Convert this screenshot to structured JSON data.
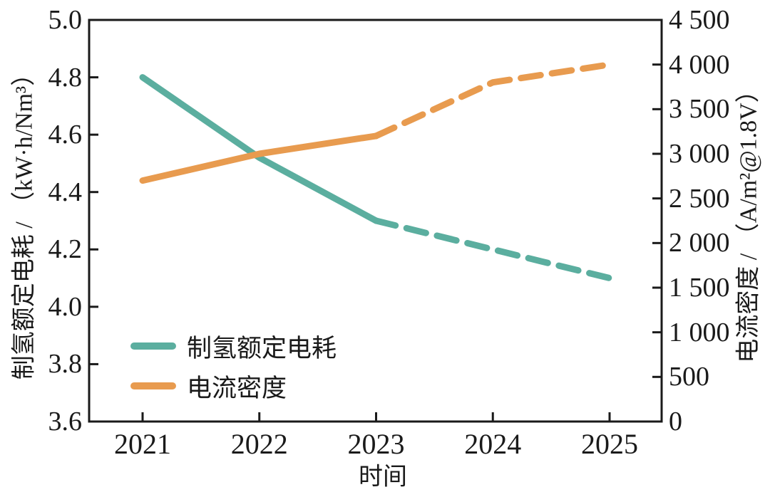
{
  "chart_data": {
    "type": "line",
    "title": "",
    "xlabel": "时间",
    "ylabel_left": "制氢额定电耗 / （kW·h/Nm³）",
    "ylabel_right": "电流密度 / （A/m²@1.8V）",
    "x_tick_labels": [
      "2021",
      "2022",
      "2023",
      "2024",
      "2025"
    ],
    "ylim_left": [
      3.6,
      5.0
    ],
    "y_ticks_left": [
      "5.0",
      "4.8",
      "4.6",
      "4.4",
      "4.2",
      "4.0",
      "3.8",
      "3.6"
    ],
    "ylim_right": [
      0,
      4500
    ],
    "y_ticks_right": [
      "4 500",
      "4 000",
      "3 500",
      "3 000",
      "2 500",
      "2 000",
      "1 500",
      "1 000",
      "500",
      "0"
    ],
    "grid": false,
    "legend_position": "inside-lower-left",
    "axis_color": "#1a1a1a",
    "series": [
      {
        "id": "power-consumption",
        "name": "制氢额定电耗",
        "axis": "left",
        "color": "#5BAE9F",
        "x": [
          2021,
          2022,
          2023,
          2024,
          2025
        ],
        "y": [
          4.8,
          4.52,
          4.3,
          4.2,
          4.1
        ],
        "solid_until_x": 2023
      },
      {
        "id": "current-density",
        "name": "电流密度",
        "axis": "right",
        "color": "#E89B4F",
        "x": [
          2021,
          2022,
          2023,
          2024,
          2025
        ],
        "y": [
          2700,
          3000,
          3200,
          3800,
          4000
        ],
        "solid_until_x": 2023
      }
    ]
  },
  "legend": {
    "items": [
      {
        "label": "制氢额定电耗",
        "color": "#5BAE9F"
      },
      {
        "label": "电流密度",
        "color": "#E89B4F"
      }
    ]
  }
}
